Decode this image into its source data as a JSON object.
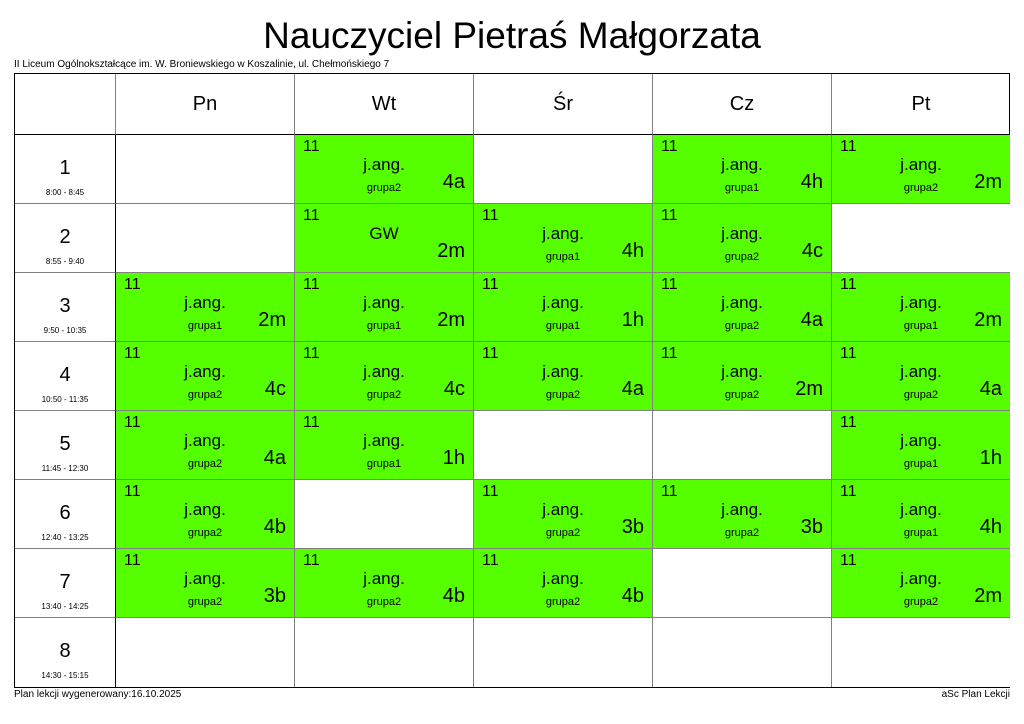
{
  "title": "Nauczyciel Pietraś Małgorzata",
  "school": "II Liceum Ogólnokształcące im. W. Broniewskiego w Koszalinie, ul. Chełmońskiego 7",
  "footer": {
    "generated": "Plan lekcji wygenerowany:16.10.2025",
    "software": "aSc Plan Lekcji"
  },
  "colors": {
    "lesson": "#55ff00"
  },
  "days": [
    "Pn",
    "Wt",
    "Śr",
    "Cz",
    "Pt"
  ],
  "periods": [
    {
      "num": "1",
      "time": "8:00 - 8:45"
    },
    {
      "num": "2",
      "time": "8:55 - 9:40"
    },
    {
      "num": "3",
      "time": "9:50 - 10:35"
    },
    {
      "num": "4",
      "time": "10:50 - 11:35"
    },
    {
      "num": "5",
      "time": "11:45 - 12:30"
    },
    {
      "num": "6",
      "time": "12:40 - 13:25"
    },
    {
      "num": "7",
      "time": "13:40 - 14:25"
    },
    {
      "num": "8",
      "time": "14:30 - 15:15"
    }
  ],
  "schedule": [
    [
      null,
      {
        "room": "11",
        "subject": "j.ang.",
        "group": "grupa2",
        "class": "4a"
      },
      null,
      {
        "room": "11",
        "subject": "j.ang.",
        "group": "grupa1",
        "class": "4h"
      },
      {
        "room": "11",
        "subject": "j.ang.",
        "group": "grupa2",
        "class": "2m"
      }
    ],
    [
      null,
      {
        "room": "11",
        "subject": "GW",
        "group": "",
        "class": "2m"
      },
      {
        "room": "11",
        "subject": "j.ang.",
        "group": "grupa1",
        "class": "4h"
      },
      {
        "room": "11",
        "subject": "j.ang.",
        "group": "grupa2",
        "class": "4c"
      },
      null
    ],
    [
      {
        "room": "11",
        "subject": "j.ang.",
        "group": "grupa1",
        "class": "2m"
      },
      {
        "room": "11",
        "subject": "j.ang.",
        "group": "grupa1",
        "class": "2m"
      },
      {
        "room": "11",
        "subject": "j.ang.",
        "group": "grupa1",
        "class": "1h"
      },
      {
        "room": "11",
        "subject": "j.ang.",
        "group": "grupa2",
        "class": "4a"
      },
      {
        "room": "11",
        "subject": "j.ang.",
        "group": "grupa1",
        "class": "2m"
      }
    ],
    [
      {
        "room": "11",
        "subject": "j.ang.",
        "group": "grupa2",
        "class": "4c"
      },
      {
        "room": "11",
        "subject": "j.ang.",
        "group": "grupa2",
        "class": "4c"
      },
      {
        "room": "11",
        "subject": "j.ang.",
        "group": "grupa2",
        "class": "4a"
      },
      {
        "room": "11",
        "subject": "j.ang.",
        "group": "grupa2",
        "class": "2m"
      },
      {
        "room": "11",
        "subject": "j.ang.",
        "group": "grupa2",
        "class": "4a"
      }
    ],
    [
      {
        "room": "11",
        "subject": "j.ang.",
        "group": "grupa2",
        "class": "4a"
      },
      {
        "room": "11",
        "subject": "j.ang.",
        "group": "grupa1",
        "class": "1h"
      },
      null,
      null,
      {
        "room": "11",
        "subject": "j.ang.",
        "group": "grupa1",
        "class": "1h"
      }
    ],
    [
      {
        "room": "11",
        "subject": "j.ang.",
        "group": "grupa2",
        "class": "4b"
      },
      null,
      {
        "room": "11",
        "subject": "j.ang.",
        "group": "grupa2",
        "class": "3b"
      },
      {
        "room": "11",
        "subject": "j.ang.",
        "group": "grupa2",
        "class": "3b"
      },
      {
        "room": "11",
        "subject": "j.ang.",
        "group": "grupa1",
        "class": "4h"
      }
    ],
    [
      {
        "room": "11",
        "subject": "j.ang.",
        "group": "grupa2",
        "class": "3b"
      },
      {
        "room": "11",
        "subject": "j.ang.",
        "group": "grupa2",
        "class": "4b"
      },
      {
        "room": "11",
        "subject": "j.ang.",
        "group": "grupa2",
        "class": "4b"
      },
      null,
      {
        "room": "11",
        "subject": "j.ang.",
        "group": "grupa2",
        "class": "2m"
      }
    ],
    [
      null,
      null,
      null,
      null,
      null
    ]
  ]
}
